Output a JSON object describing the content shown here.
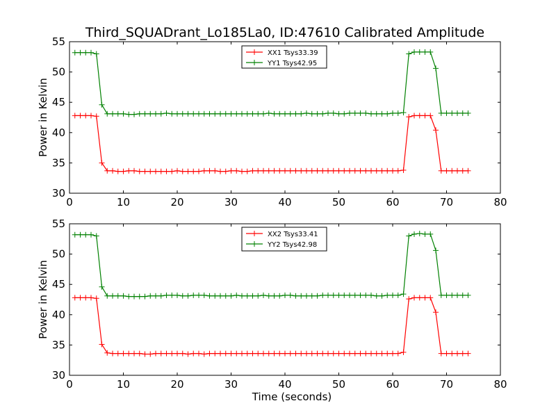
{
  "figure_title": "Third_SQUADrant_Lo185La0, ID:47610 Calibrated Amplitude",
  "chart_data": [
    {
      "type": "line",
      "title": "Third_SQUADrant_Lo185La0, ID:47610 Calibrated Amplitude",
      "xlabel": "",
      "ylabel": "Power in Kelvin",
      "xlim": [
        0,
        80
      ],
      "ylim": [
        30,
        55
      ],
      "xticks": [
        "0",
        "10",
        "20",
        "30",
        "40",
        "50",
        "60",
        "70",
        "80"
      ],
      "yticks": [
        "30",
        "35",
        "40",
        "45",
        "50",
        "55"
      ],
      "grid": false,
      "legend_position": "top-center",
      "x": [
        1,
        2,
        3,
        4,
        5,
        6,
        7,
        8,
        9,
        10,
        11,
        12,
        13,
        14,
        15,
        16,
        17,
        18,
        19,
        20,
        21,
        22,
        23,
        24,
        25,
        26,
        27,
        28,
        29,
        30,
        31,
        32,
        33,
        34,
        35,
        36,
        37,
        38,
        39,
        40,
        41,
        42,
        43,
        44,
        45,
        46,
        47,
        48,
        49,
        50,
        51,
        52,
        53,
        54,
        55,
        56,
        57,
        58,
        59,
        60,
        61,
        62,
        63,
        64,
        65,
        66,
        67,
        68,
        69,
        70,
        71,
        72,
        73,
        74
      ],
      "series": [
        {
          "name": "XX1 Tsys33.39",
          "color": "#ff0000",
          "values": [
            42.8,
            42.8,
            42.8,
            42.8,
            42.7,
            35.0,
            33.7,
            33.7,
            33.6,
            33.6,
            33.7,
            33.7,
            33.6,
            33.6,
            33.6,
            33.6,
            33.6,
            33.6,
            33.6,
            33.7,
            33.6,
            33.6,
            33.6,
            33.6,
            33.7,
            33.7,
            33.7,
            33.6,
            33.6,
            33.7,
            33.7,
            33.6,
            33.6,
            33.7,
            33.7,
            33.7,
            33.7,
            33.7,
            33.7,
            33.7,
            33.7,
            33.7,
            33.7,
            33.7,
            33.7,
            33.7,
            33.7,
            33.7,
            33.7,
            33.7,
            33.7,
            33.7,
            33.7,
            33.7,
            33.7,
            33.7,
            33.7,
            33.7,
            33.7,
            33.7,
            33.7,
            33.8,
            42.6,
            42.8,
            42.8,
            42.8,
            42.8,
            40.4,
            33.7,
            33.7,
            33.7,
            33.7,
            33.7,
            33.7
          ]
        },
        {
          "name": "YY1 Tsys42.95",
          "color": "#008000",
          "values": [
            53.2,
            53.2,
            53.2,
            53.2,
            53.0,
            44.6,
            43.1,
            43.1,
            43.1,
            43.1,
            43.0,
            43.0,
            43.1,
            43.1,
            43.1,
            43.1,
            43.1,
            43.2,
            43.1,
            43.1,
            43.1,
            43.1,
            43.1,
            43.1,
            43.1,
            43.1,
            43.1,
            43.1,
            43.1,
            43.1,
            43.1,
            43.1,
            43.1,
            43.1,
            43.1,
            43.1,
            43.2,
            43.1,
            43.1,
            43.1,
            43.1,
            43.1,
            43.1,
            43.2,
            43.1,
            43.1,
            43.1,
            43.2,
            43.2,
            43.1,
            43.1,
            43.2,
            43.2,
            43.2,
            43.2,
            43.1,
            43.1,
            43.1,
            43.1,
            43.2,
            43.2,
            43.3,
            53.0,
            53.3,
            53.3,
            53.3,
            53.3,
            50.6,
            43.2,
            43.2,
            43.2,
            43.2,
            43.2,
            43.2
          ]
        }
      ]
    },
    {
      "type": "line",
      "title": "",
      "xlabel": "Time (seconds)",
      "ylabel": "Power in Kelvin",
      "xlim": [
        0,
        80
      ],
      "ylim": [
        30,
        55
      ],
      "xticks": [
        "0",
        "10",
        "20",
        "30",
        "40",
        "50",
        "60",
        "70",
        "80"
      ],
      "yticks": [
        "30",
        "35",
        "40",
        "45",
        "50",
        "55"
      ],
      "grid": false,
      "legend_position": "top-center",
      "x": [
        1,
        2,
        3,
        4,
        5,
        6,
        7,
        8,
        9,
        10,
        11,
        12,
        13,
        14,
        15,
        16,
        17,
        18,
        19,
        20,
        21,
        22,
        23,
        24,
        25,
        26,
        27,
        28,
        29,
        30,
        31,
        32,
        33,
        34,
        35,
        36,
        37,
        38,
        39,
        40,
        41,
        42,
        43,
        44,
        45,
        46,
        47,
        48,
        49,
        50,
        51,
        52,
        53,
        54,
        55,
        56,
        57,
        58,
        59,
        60,
        61,
        62,
        63,
        64,
        65,
        66,
        67,
        68,
        69,
        70,
        71,
        72,
        73,
        74
      ],
      "series": [
        {
          "name": "XX2 Tsys33.41",
          "color": "#ff0000",
          "values": [
            42.8,
            42.8,
            42.8,
            42.8,
            42.7,
            35.1,
            33.7,
            33.6,
            33.6,
            33.6,
            33.6,
            33.6,
            33.6,
            33.5,
            33.5,
            33.6,
            33.6,
            33.6,
            33.6,
            33.6,
            33.6,
            33.5,
            33.6,
            33.6,
            33.5,
            33.6,
            33.6,
            33.6,
            33.6,
            33.6,
            33.6,
            33.6,
            33.6,
            33.6,
            33.6,
            33.6,
            33.6,
            33.6,
            33.6,
            33.6,
            33.6,
            33.6,
            33.6,
            33.6,
            33.6,
            33.6,
            33.6,
            33.6,
            33.6,
            33.6,
            33.6,
            33.6,
            33.6,
            33.6,
            33.6,
            33.6,
            33.6,
            33.6,
            33.6,
            33.6,
            33.6,
            33.8,
            42.6,
            42.8,
            42.8,
            42.8,
            42.8,
            40.4,
            33.6,
            33.6,
            33.6,
            33.6,
            33.6,
            33.6
          ]
        },
        {
          "name": "YY2 Tsys42.98",
          "color": "#008000",
          "values": [
            53.2,
            53.2,
            53.2,
            53.2,
            53.0,
            44.6,
            43.1,
            43.1,
            43.1,
            43.1,
            43.0,
            43.0,
            43.0,
            43.0,
            43.1,
            43.1,
            43.1,
            43.2,
            43.2,
            43.2,
            43.1,
            43.1,
            43.2,
            43.2,
            43.2,
            43.1,
            43.1,
            43.1,
            43.1,
            43.1,
            43.2,
            43.1,
            43.1,
            43.1,
            43.1,
            43.2,
            43.1,
            43.1,
            43.1,
            43.2,
            43.2,
            43.1,
            43.1,
            43.1,
            43.1,
            43.1,
            43.2,
            43.2,
            43.2,
            43.2,
            43.2,
            43.2,
            43.2,
            43.2,
            43.2,
            43.2,
            43.1,
            43.1,
            43.2,
            43.2,
            43.2,
            43.4,
            53.0,
            53.3,
            53.4,
            53.3,
            53.3,
            50.6,
            43.2,
            43.2,
            43.2,
            43.2,
            43.2,
            43.2
          ]
        }
      ]
    }
  ]
}
